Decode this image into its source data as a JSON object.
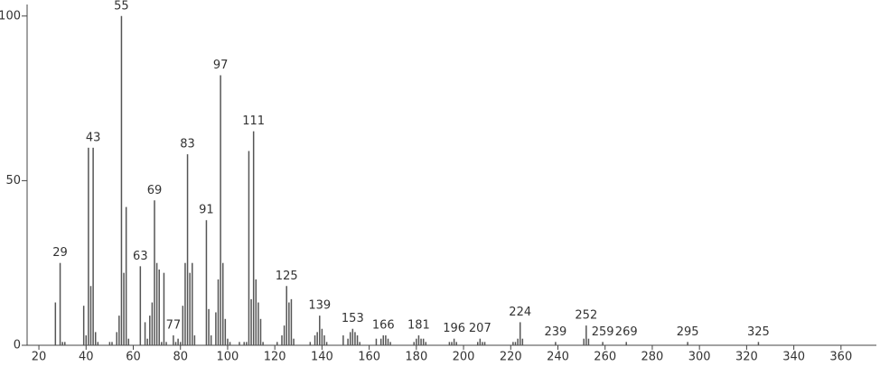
{
  "chart_data": {
    "type": "stem",
    "x": [
      27,
      29,
      30,
      31,
      39,
      40,
      41,
      42,
      43,
      44,
      45,
      50,
      51,
      53,
      54,
      55,
      56,
      57,
      58,
      63,
      65,
      66,
      67,
      68,
      69,
      70,
      71,
      72,
      73,
      74,
      77,
      78,
      79,
      80,
      81,
      82,
      83,
      84,
      85,
      86,
      91,
      92,
      93,
      95,
      96,
      97,
      98,
      99,
      100,
      101,
      105,
      107,
      108,
      109,
      110,
      111,
      112,
      113,
      114,
      115,
      121,
      123,
      124,
      125,
      126,
      127,
      128,
      135,
      137,
      138,
      139,
      140,
      141,
      142,
      149,
      151,
      152,
      153,
      154,
      155,
      156,
      163,
      165,
      166,
      167,
      168,
      169,
      179,
      180,
      181,
      182,
      183,
      184,
      194,
      195,
      196,
      197,
      206,
      207,
      208,
      209,
      221,
      222,
      223,
      224,
      225,
      239,
      251,
      252,
      253,
      259,
      269,
      295,
      325
    ],
    "values": [
      13,
      25,
      1,
      1,
      12,
      3,
      60,
      18,
      60,
      4,
      1,
      1,
      1,
      4,
      9,
      100,
      22,
      42,
      2,
      24,
      7,
      2,
      9,
      13,
      44,
      25,
      23,
      1,
      22,
      1,
      3,
      1,
      2,
      1,
      12,
      25,
      58,
      22,
      25,
      3,
      38,
      11,
      3,
      10,
      20,
      82,
      25,
      8,
      2,
      1,
      1,
      1,
      1,
      59,
      14,
      65,
      20,
      13,
      8,
      1,
      1,
      3,
      6,
      18,
      13,
      14,
      2,
      1,
      3,
      4,
      9,
      5,
      3,
      1,
      3,
      2,
      4,
      5,
      4,
      3,
      1,
      2,
      2,
      3,
      3,
      2,
      1,
      1,
      2,
      3,
      2,
      2,
      1,
      1,
      1,
      2,
      1,
      1,
      2,
      1,
      1,
      1,
      1,
      2,
      7,
      2,
      1,
      2,
      6,
      2,
      1,
      1,
      1,
      1
    ],
    "color": "#555555",
    "annotations": [
      29,
      43,
      55,
      63,
      69,
      77,
      83,
      91,
      97,
      111,
      125,
      139,
      153,
      166,
      181,
      196,
      207,
      224,
      239,
      252,
      259,
      269,
      295,
      325
    ],
    "xlim": [
      15,
      375
    ],
    "ylim": [
      0,
      103.5
    ],
    "xticks": [
      20,
      40,
      60,
      80,
      100,
      120,
      140,
      160,
      180,
      200,
      220,
      240,
      260,
      280,
      300,
      320,
      340,
      360
    ],
    "yticks": [
      0,
      50,
      100
    ]
  }
}
